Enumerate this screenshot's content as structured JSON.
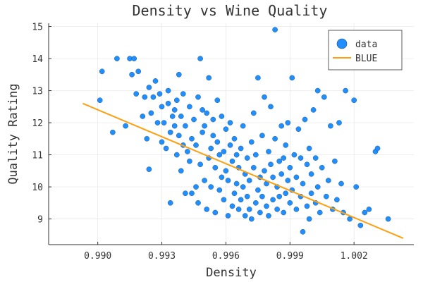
{
  "chart_data": {
    "type": "scatter",
    "title": "Density vs Wine Quality",
    "xlabel": "Density",
    "ylabel": "Quality Rating",
    "xlim": [
      0.9877,
      1.0048
    ],
    "ylim": [
      8.2,
      15.1
    ],
    "xticks": [
      0.99,
      0.993,
      0.996,
      0.999,
      1.002
    ],
    "xtick_labels": [
      "0.990",
      "0.993",
      "0.996",
      "0.999",
      "1.002"
    ],
    "yticks": [
      9,
      10,
      11,
      12,
      13,
      14,
      15
    ],
    "ytick_labels": [
      "9",
      "10",
      "11",
      "12",
      "13",
      "14",
      "15"
    ],
    "grid": true,
    "legend_position": "top-right",
    "colors": {
      "data": "#1f8fff",
      "fit": "#ff9f0f"
    },
    "series": [
      {
        "name": "data",
        "kind": "scatter",
        "points": [
          [
            0.9901,
            12.7
          ],
          [
            0.9902,
            13.6
          ],
          [
            0.9907,
            11.7
          ],
          [
            0.9909,
            14.0
          ],
          [
            0.9913,
            11.9
          ],
          [
            0.9915,
            14.0
          ],
          [
            0.9916,
            13.5
          ],
          [
            0.9917,
            14.0
          ],
          [
            0.9918,
            12.9
          ],
          [
            0.9919,
            13.6
          ],
          [
            0.9921,
            12.2
          ],
          [
            0.9922,
            12.8
          ],
          [
            0.9923,
            11.5
          ],
          [
            0.9924,
            10.55
          ],
          [
            0.9924,
            13.1
          ],
          [
            0.9925,
            12.3
          ],
          [
            0.9926,
            12.8
          ],
          [
            0.9927,
            13.3
          ],
          [
            0.9928,
            12.0
          ],
          [
            0.9929,
            12.9
          ],
          [
            0.993,
            11.4
          ],
          [
            0.993,
            12.5
          ],
          [
            0.9931,
            12.0
          ],
          [
            0.9932,
            11.2
          ],
          [
            0.9933,
            12.6
          ],
          [
            0.9933,
            13.0
          ],
          [
            0.9934,
            11.7
          ],
          [
            0.9934,
            9.5
          ],
          [
            0.9935,
            12.2
          ],
          [
            0.9936,
            11.9
          ],
          [
            0.9936,
            12.4
          ],
          [
            0.9937,
            11.0
          ],
          [
            0.9937,
            12.7
          ],
          [
            0.9938,
            11.6
          ],
          [
            0.9938,
            13.5
          ],
          [
            0.9939,
            10.5
          ],
          [
            0.9939,
            12.2
          ],
          [
            0.994,
            11.3
          ],
          [
            0.994,
            12.9
          ],
          [
            0.9941,
            9.8
          ],
          [
            0.9941,
            11.9
          ],
          [
            0.9942,
            11.1
          ],
          [
            0.9943,
            12.5
          ],
          [
            0.9943,
            10.8
          ],
          [
            0.9944,
            9.8
          ],
          [
            0.9944,
            11.5
          ],
          [
            0.9945,
            12.1
          ],
          [
            0.9946,
            10.0
          ],
          [
            0.9946,
            11.3
          ],
          [
            0.9947,
            9.5
          ],
          [
            0.9947,
            12.8
          ],
          [
            0.9948,
            10.7
          ],
          [
            0.9948,
            14.0
          ],
          [
            0.9949,
            11.7
          ],
          [
            0.9949,
            12.4
          ],
          [
            0.995,
            10.2
          ],
          [
            0.995,
            11.9
          ],
          [
            0.9951,
            9.3
          ],
          [
            0.9951,
            12.3
          ],
          [
            0.9952,
            10.9
          ],
          [
            0.9952,
            13.4
          ],
          [
            0.9953,
            11.2
          ],
          [
            0.9953,
            10.0
          ],
          [
            0.9954,
            11.6
          ],
          [
            0.9954,
            12.1
          ],
          [
            0.9955,
            9.2
          ],
          [
            0.9955,
            10.6
          ],
          [
            0.9956,
            11.4
          ],
          [
            0.9956,
            12.7
          ],
          [
            0.9957,
            9.9
          ],
          [
            0.9957,
            11.0
          ],
          [
            0.9958,
            10.3
          ],
          [
            0.9958,
            12.2
          ],
          [
            0.9959,
            9.6
          ],
          [
            0.9959,
            11.1
          ],
          [
            0.996,
            10.5
          ],
          [
            0.996,
            11.8
          ],
          [
            0.9961,
            9.1
          ],
          [
            0.9961,
            10.2
          ],
          [
            0.9962,
            11.3
          ],
          [
            0.9962,
            12.0
          ],
          [
            0.9963,
            9.4
          ],
          [
            0.9963,
            10.8
          ],
          [
            0.9964,
            9.8
          ],
          [
            0.9964,
            11.5
          ],
          [
            0.9965,
            10.1
          ],
          [
            0.9965,
            11.0
          ],
          [
            0.9966,
            9.3
          ],
          [
            0.9966,
            10.6
          ],
          [
            0.9967,
            9.6
          ],
          [
            0.9967,
            11.2
          ],
          [
            0.9968,
            10.0
          ],
          [
            0.9968,
            11.9
          ],
          [
            0.9969,
            9.1
          ],
          [
            0.9969,
            10.4
          ],
          [
            0.997,
            9.7
          ],
          [
            0.997,
            10.9
          ],
          [
            0.9971,
            9.3
          ],
          [
            0.9971,
            10.2
          ],
          [
            0.9972,
            11.4
          ],
          [
            0.9972,
            9.0
          ],
          [
            0.9973,
            10.6
          ],
          [
            0.9973,
            12.3
          ],
          [
            0.9974,
            9.5
          ],
          [
            0.9974,
            11.0
          ],
          [
            0.9975,
            9.9
          ],
          [
            0.9975,
            13.4
          ],
          [
            0.9976,
            9.2
          ],
          [
            0.9976,
            10.3
          ],
          [
            0.9977,
            11.6
          ],
          [
            0.9977,
            9.7
          ],
          [
            0.9978,
            10.5
          ],
          [
            0.9978,
            12.8
          ],
          [
            0.9979,
            9.4
          ],
          [
            0.9979,
            10.1
          ],
          [
            0.998,
            11.1
          ],
          [
            0.998,
            9.1
          ],
          [
            0.9981,
            10.7
          ],
          [
            0.9981,
            12.5
          ],
          [
            0.9982,
            9.6
          ],
          [
            0.9982,
            10.3
          ],
          [
            0.9983,
            11.5
          ],
          [
            0.9983,
            14.9
          ],
          [
            0.9984,
            9.3
          ],
          [
            0.9984,
            10.0
          ],
          [
            0.9985,
            10.8
          ],
          [
            0.9985,
            9.7
          ],
          [
            0.9986,
            11.9
          ],
          [
            0.9986,
            10.4
          ],
          [
            0.9987,
            9.2
          ],
          [
            0.9987,
            10.9
          ],
          [
            0.9988,
            9.8
          ],
          [
            0.9988,
            11.3
          ],
          [
            0.9989,
            10.2
          ],
          [
            0.9989,
            12.0
          ],
          [
            0.999,
            9.5
          ],
          [
            0.999,
            10.6
          ],
          [
            0.9991,
            13.4
          ],
          [
            0.9991,
            9.9
          ],
          [
            0.9992,
            11.0
          ],
          [
            0.9993,
            9.3
          ],
          [
            0.9993,
            10.3
          ],
          [
            0.9994,
            11.8
          ],
          [
            0.9995,
            9.7
          ],
          [
            0.9995,
            10.9
          ],
          [
            0.9996,
            8.6
          ],
          [
            0.9996,
            10.1
          ],
          [
            0.9997,
            12.1
          ],
          [
            0.9998,
            9.4
          ],
          [
            0.9998,
            10.7
          ],
          [
            0.9999,
            9.0
          ],
          [
            0.9999,
            11.2
          ],
          [
            1.0,
            9.8
          ],
          [
            1.0,
            10.4
          ],
          [
            1.0001,
            12.4
          ],
          [
            1.0002,
            9.5
          ],
          [
            1.0002,
            10.9
          ],
          [
            1.0003,
            13.0
          ],
          [
            1.0003,
            10.0
          ],
          [
            1.0004,
            9.2
          ],
          [
            1.0005,
            10.6
          ],
          [
            1.0006,
            12.8
          ],
          [
            1.0007,
            9.7
          ],
          [
            1.0008,
            10.2
          ],
          [
            1.0009,
            11.9
          ],
          [
            1.001,
            9.3
          ],
          [
            1.0011,
            10.8
          ],
          [
            1.0012,
            9.6
          ],
          [
            1.0013,
            12.0
          ],
          [
            1.0014,
            10.1
          ],
          [
            1.0015,
            9.2
          ],
          [
            1.0016,
            13.0
          ],
          [
            1.0018,
            9.0
          ],
          [
            1.002,
            12.7
          ],
          [
            1.0021,
            10.0
          ],
          [
            1.0023,
            8.8
          ],
          [
            1.0025,
            9.2
          ],
          [
            1.0027,
            9.3
          ],
          [
            1.003,
            11.1
          ],
          [
            1.0031,
            11.2
          ],
          [
            1.0036,
            9.0
          ]
        ]
      },
      {
        "name": "BLUE",
        "kind": "line",
        "points": [
          [
            0.9893,
            12.6
          ],
          [
            1.0043,
            8.4
          ]
        ]
      }
    ]
  }
}
